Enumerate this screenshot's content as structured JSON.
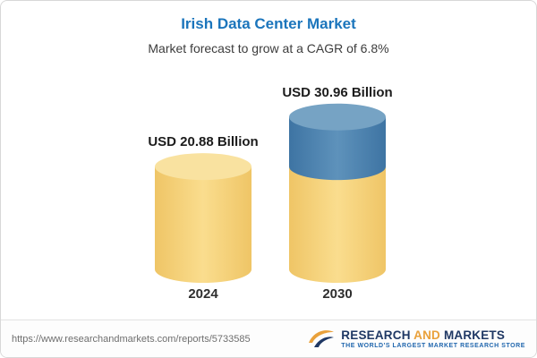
{
  "header": {
    "title": "Irish Data Center Market",
    "subtitle": "Market forecast to grow at a CAGR of 6.8%"
  },
  "chart_data": {
    "type": "bar",
    "variant": "3d-cylinder",
    "title": "Irish Data Center Market",
    "subtitle": "Market forecast to grow at a CAGR of 6.8%",
    "categories": [
      "2024",
      "2030"
    ],
    "values": [
      20.88,
      30.96
    ],
    "unit": "USD Billion",
    "value_labels": [
      "USD 20.88 Billion",
      "USD 30.96 Billion"
    ],
    "cagr_pct": 6.8,
    "ylim": [
      0,
      35
    ],
    "legend": "none",
    "grid": "off",
    "colors": {
      "base_segment": "#F2CF6F",
      "growth_segment": "#4478A8"
    },
    "annotation": "2030 cylinder shows 2024 base value in gold with incremental growth to 2030 in blue"
  },
  "footer": {
    "url": "https://www.researchandmarkets.com/reports/5733585",
    "logo": {
      "word1": "RESEARCH",
      "word2": "AND",
      "word3": "MARKETS",
      "tagline": "THE WORLD'S LARGEST MARKET RESEARCH STORE"
    }
  },
  "brand_colors": {
    "title_blue": "#1B75BC",
    "logo_navy": "#1F3864",
    "logo_gold": "#E9A13B",
    "tagline_blue": "#2167AE"
  }
}
